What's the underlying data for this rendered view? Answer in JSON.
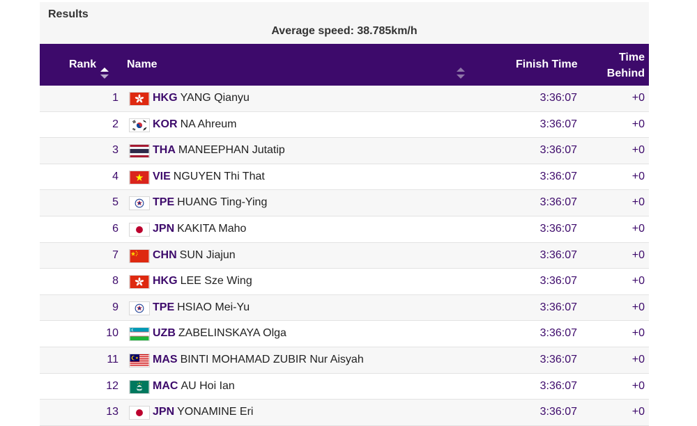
{
  "section": {
    "title": "Results",
    "average_speed": "Average speed: 38.785km/h"
  },
  "columns": {
    "rank": "Rank",
    "name": "Name",
    "finish": "Finish Time",
    "behind_line1": "Time",
    "behind_line2": "Behind"
  },
  "rows": [
    {
      "rank": "1",
      "noc": "HKG",
      "name": "YANG Qianyu",
      "finish": "3:36:07",
      "behind": "+0",
      "flag": "hkg-flag-icon"
    },
    {
      "rank": "2",
      "noc": "KOR",
      "name": "NA Ahreum",
      "finish": "3:36:07",
      "behind": "+0",
      "flag": "kor-flag-icon"
    },
    {
      "rank": "3",
      "noc": "THA",
      "name": "MANEEPHAN Jutatip",
      "finish": "3:36:07",
      "behind": "+0",
      "flag": "tha-flag-icon"
    },
    {
      "rank": "4",
      "noc": "VIE",
      "name": "NGUYEN Thi That",
      "finish": "3:36:07",
      "behind": "+0",
      "flag": "vie-flag-icon"
    },
    {
      "rank": "5",
      "noc": "TPE",
      "name": "HUANG Ting-Ying",
      "finish": "3:36:07",
      "behind": "+0",
      "flag": "tpe-flag-icon"
    },
    {
      "rank": "6",
      "noc": "JPN",
      "name": "KAKITA Maho",
      "finish": "3:36:07",
      "behind": "+0",
      "flag": "jpn-flag-icon"
    },
    {
      "rank": "7",
      "noc": "CHN",
      "name": "SUN Jiajun",
      "finish": "3:36:07",
      "behind": "+0",
      "flag": "chn-flag-icon"
    },
    {
      "rank": "8",
      "noc": "HKG",
      "name": "LEE Sze Wing",
      "finish": "3:36:07",
      "behind": "+0",
      "flag": "hkg-flag-icon"
    },
    {
      "rank": "9",
      "noc": "TPE",
      "name": "HSIAO Mei-Yu",
      "finish": "3:36:07",
      "behind": "+0",
      "flag": "tpe-flag-icon"
    },
    {
      "rank": "10",
      "noc": "UZB",
      "name": "ZABELINSKAYA Olga",
      "finish": "3:36:07",
      "behind": "+0",
      "flag": "uzb-flag-icon"
    },
    {
      "rank": "11",
      "noc": "MAS",
      "name": "BINTI MOHAMAD ZUBIR Nur Aisyah",
      "finish": "3:36:07",
      "behind": "+0",
      "flag": "mas-flag-icon"
    },
    {
      "rank": "12",
      "noc": "MAC",
      "name": "AU Hoi Ian",
      "finish": "3:36:07",
      "behind": "+0",
      "flag": "mac-flag-icon"
    },
    {
      "rank": "13",
      "noc": "JPN",
      "name": "YONAMINE Eri",
      "finish": "3:36:07",
      "behind": "+0",
      "flag": "jpn-flag-icon"
    }
  ],
  "colors": {
    "header_bg": "#3d0a6b",
    "accent_text": "#3d0a6b",
    "caption_bg": "#f6f6f6"
  }
}
